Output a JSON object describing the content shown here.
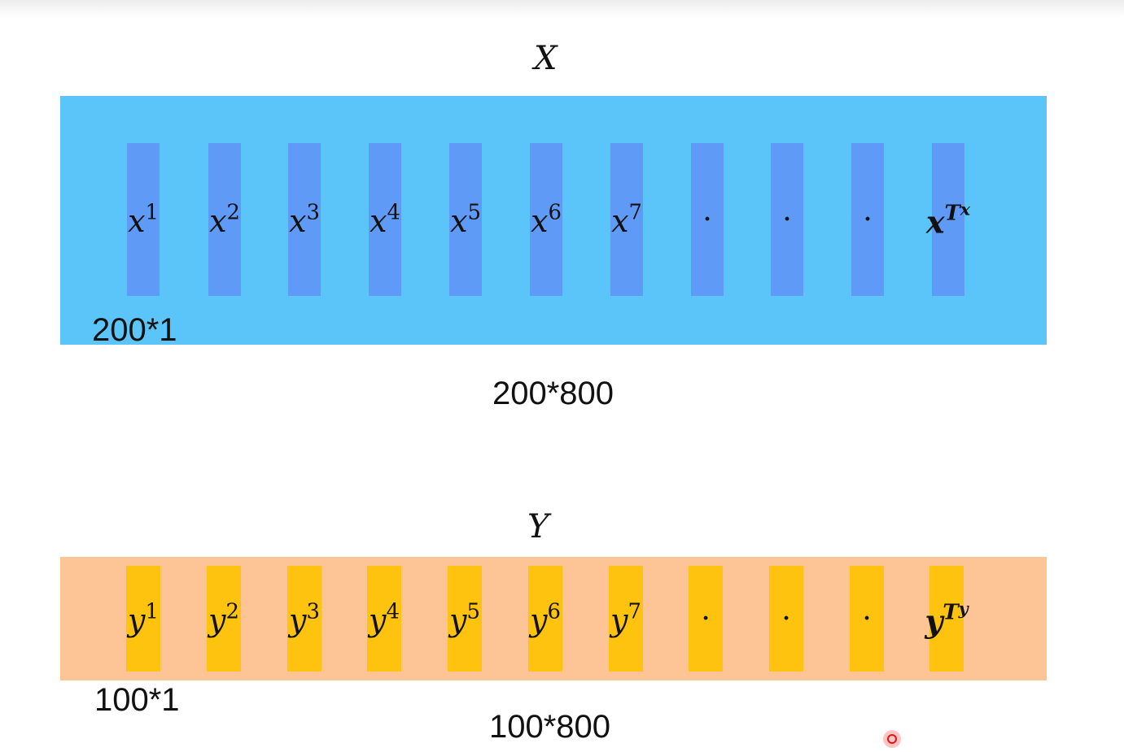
{
  "x_matrix": {
    "title": "X",
    "columns": [
      {
        "base": "x",
        "sup": "1"
      },
      {
        "base": "x",
        "sup": "2"
      },
      {
        "base": "x",
        "sup": "3"
      },
      {
        "base": "x",
        "sup": "4"
      },
      {
        "base": "x",
        "sup": "5"
      },
      {
        "base": "x",
        "sup": "6"
      },
      {
        "base": "x",
        "sup": "7"
      },
      {
        "dot": "·"
      },
      {
        "dot": "·"
      },
      {
        "dot": "·"
      },
      {
        "base": "x",
        "sup": "T",
        "sub": "x"
      }
    ],
    "column_dim": "200*1",
    "matrix_dim": "200*800",
    "panel_color": "#5bc4f8",
    "column_color": "#5f9bf6"
  },
  "y_matrix": {
    "title": "Y",
    "columns": [
      {
        "base": "y",
        "sup": "1"
      },
      {
        "base": "y",
        "sup": "2"
      },
      {
        "base": "y",
        "sup": "3"
      },
      {
        "base": "y",
        "sup": "4"
      },
      {
        "base": "y",
        "sup": "5"
      },
      {
        "base": "y",
        "sup": "6"
      },
      {
        "base": "y",
        "sup": "7"
      },
      {
        "dot": "·"
      },
      {
        "dot": "·"
      },
      {
        "dot": "·"
      },
      {
        "base": "y",
        "sup": "T",
        "sub": "y"
      }
    ],
    "column_dim": "100*1",
    "matrix_dim": "100*800",
    "panel_color": "#fdc596",
    "column_color": "#fdc30f"
  }
}
